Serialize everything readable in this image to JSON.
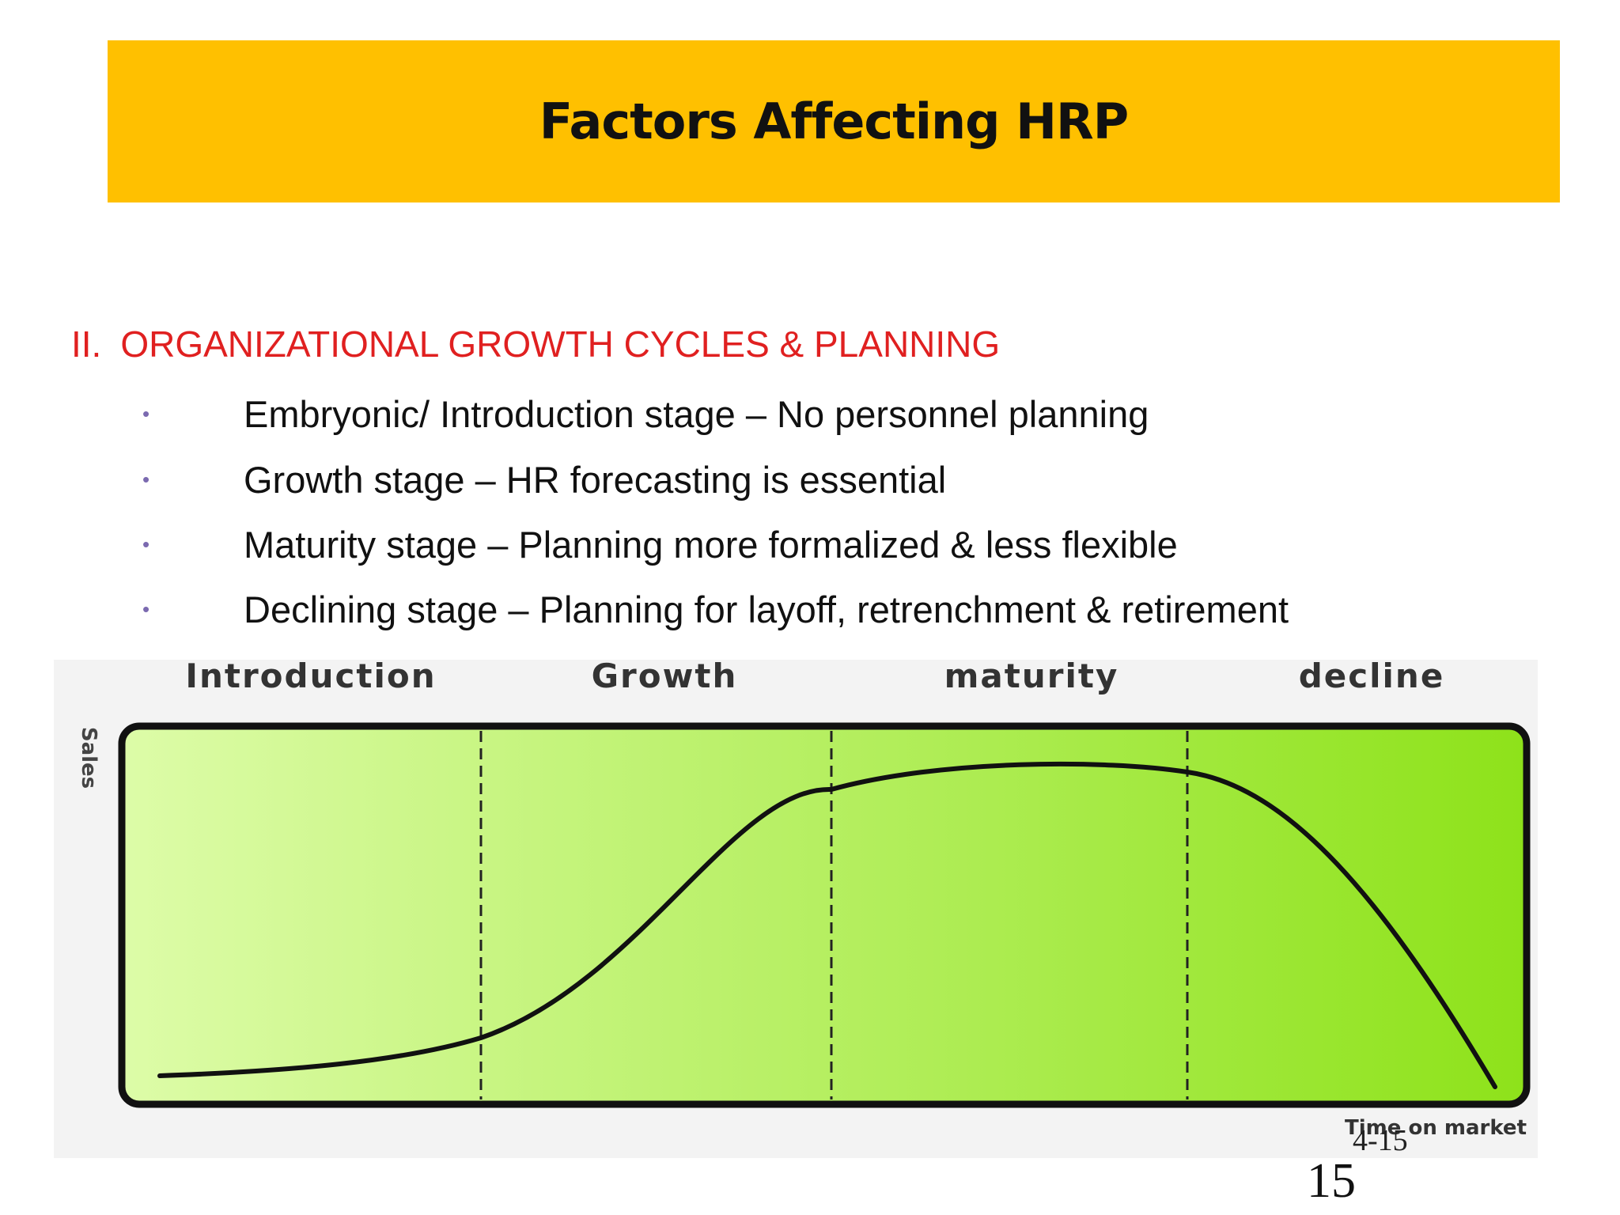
{
  "slide": {
    "title": "Factors Affecting HRP",
    "section": {
      "number": "II.",
      "heading": "ORGANIZATIONAL GROWTH CYCLES & PLANNING"
    },
    "bullets": [
      {
        "marker": "•",
        "text": "Embryonic/ Introduction stage – No personnel planning"
      },
      {
        "marker": "•",
        "text": "Growth stage – HR forecasting is essential"
      },
      {
        "marker": "•",
        "text": "Maturity stage – Planning more formalized & less flexible"
      },
      {
        "marker": "•",
        "text": "Declining stage – Planning for layoff, retrenchment & retirement"
      }
    ],
    "page_code": "4-15",
    "page_number": "15"
  },
  "figure": {
    "stages": [
      "Introduction",
      "Growth",
      "maturity",
      "decline"
    ],
    "y_label": "Sales",
    "x_label": "Time on market",
    "colors": {
      "panel_light": "#DDFCA8",
      "panel_dark": "#8EE21A",
      "curve": "#111111",
      "title_band": "#FFC000",
      "heading": "#E02020"
    }
  }
}
